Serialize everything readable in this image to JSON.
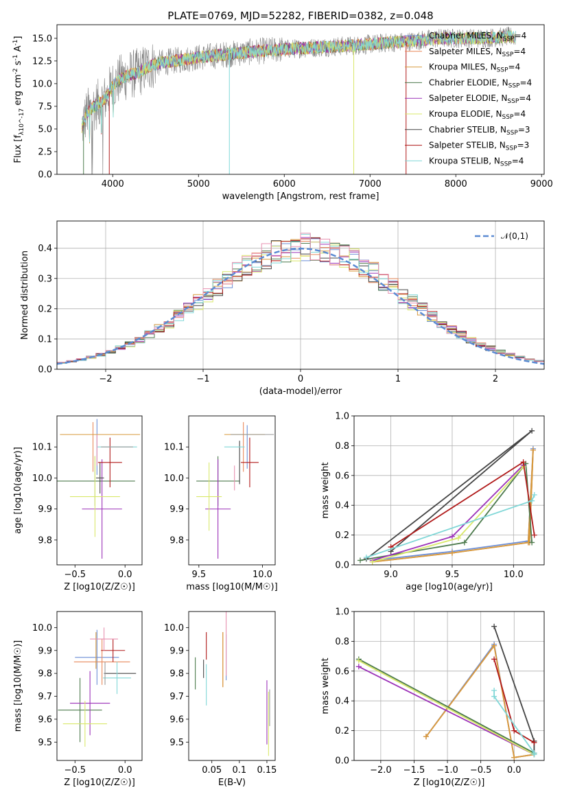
{
  "colors": [
    "#6b8ed6",
    "#e8885a",
    "#d79a3c",
    "#4c7a4c",
    "#9b30b8",
    "#d9e86a",
    "#444444",
    "#b01818",
    "#7fd7d7",
    "#e890b0",
    "#999999"
  ],
  "series_names": [
    "Chabrier MILES, N_SSP=4",
    "Salpeter MILES, N_SSP=4",
    "Kroupa MILES, N_SSP=4",
    "Chabrier ELODIE, N_SSP=4",
    "Salpeter ELODIE, N_SSP=4",
    "Kroupa ELODIE, N_SSP=4",
    "Chabrier STELIB, N_SSP=3",
    "Salpeter STELIB, N_SSP=3",
    "Kroupa STELIB, N_SSP=4"
  ],
  "chart_data": [
    {
      "id": "spectrum",
      "type": "line",
      "title": "PLATE=0769, MJD=52282, FIBERID=0382, z=0.048",
      "xlabel": "wavelength [Angstrom, rest frame]",
      "ylabel": "Flux [f_λ10^-17 erg cm^-2 s^-1 A^-1]",
      "xlim": [
        3350,
        9030
      ],
      "ylim": [
        0,
        16.5
      ],
      "xticks": [
        4000,
        5000,
        6000,
        7000,
        8000,
        9000
      ],
      "yticks": [
        0.0,
        2.5,
        5.0,
        7.5,
        10.0,
        12.5,
        15.0
      ],
      "legend": "right",
      "continuum": {
        "x": [
          3640,
          3700,
          3800,
          3900,
          4000,
          4100,
          4200,
          4300,
          4400,
          4500,
          4700,
          5000,
          5300,
          5600,
          6000,
          6400,
          6800,
          7200,
          7500,
          7800,
          8200,
          8700
        ],
        "y": [
          5.2,
          6.8,
          7.6,
          8.2,
          9.8,
          10.6,
          11.0,
          11.2,
          11.8,
          12.2,
          12.5,
          12.9,
          13.2,
          13.5,
          13.8,
          14.0,
          14.2,
          14.5,
          14.7,
          15.0,
          15.0,
          15.2
        ]
      }
    },
    {
      "id": "residuals",
      "type": "line",
      "xlabel": "(data-model)/error",
      "ylabel": "Normed distribution",
      "xlim": [
        -2.5,
        2.5
      ],
      "ylim": [
        0,
        0.49
      ],
      "xticks": [
        -2,
        -1,
        0,
        1,
        2
      ],
      "yticks": [
        0.0,
        0.1,
        0.2,
        0.3,
        0.4
      ],
      "grid": true,
      "legend_label": "N(0,1)",
      "bin_width": 0.1
    },
    {
      "id": "age_vs_Z",
      "type": "scatter",
      "xlabel": "Z [log10(Z/Z☉)]",
      "ylabel": "age  [log10(age/yr)]",
      "xlim": [
        -0.68,
        0.17
      ],
      "ylim": [
        9.72,
        10.2
      ],
      "xticks": [
        -0.5,
        0.0
      ],
      "yticks": [
        9.8,
        9.9,
        10.0,
        10.1
      ],
      "points": [
        {
          "x": -0.28,
          "xerr": 0.0,
          "y": 10.1,
          "yerr": 0.09
        },
        {
          "x": -0.32,
          "xerr": 0.0,
          "y": 10.1,
          "yerr": 0.08
        },
        {
          "x": -0.25,
          "xerr": 0.4,
          "y": 10.14,
          "yerr": 0.0
        },
        {
          "x": -0.3,
          "xerr": 0.4,
          "y": 9.99,
          "yerr": 0.08
        },
        {
          "x": -0.23,
          "xerr": 0.2,
          "y": 9.9,
          "yerr": 0.16
        },
        {
          "x": -0.3,
          "xerr": 0.25,
          "y": 9.94,
          "yerr": 0.13
        },
        {
          "x": -0.25,
          "xerr": 0.04,
          "y": 10.0,
          "yerr": 0.05
        },
        {
          "x": -0.15,
          "xerr": 0.12,
          "y": 10.05,
          "yerr": 0.08
        },
        {
          "x": -0.08,
          "xerr": 0.2,
          "y": 10.1,
          "yerr": 0.0
        },
        {
          "x": -0.28,
          "xerr": 0.0,
          "y": 10.09,
          "yerr": 0.05
        },
        {
          "x": -0.08,
          "xerr": 0.16,
          "y": 10.1,
          "yerr": 0.0
        }
      ]
    },
    {
      "id": "age_vs_mass",
      "type": "scatter",
      "xlabel": "mass [log10(M/M☉)]",
      "ylabel": "",
      "xlim": [
        9.42,
        10.1
      ],
      "ylim": [
        9.72,
        10.2
      ],
      "xticks": [
        9.5,
        10.0
      ],
      "yticks": [
        9.8,
        9.9,
        10.0,
        10.1
      ],
      "points": [
        {
          "x": 9.88,
          "xerr": 0.0,
          "y": 10.1,
          "yerr": 0.07
        },
        {
          "x": 9.85,
          "xerr": 0.0,
          "y": 10.1,
          "yerr": 0.08
        },
        {
          "x": 9.86,
          "xerr": 0.16,
          "y": 10.14,
          "yerr": 0.0
        },
        {
          "x": 9.65,
          "xerr": 0.17,
          "y": 9.99,
          "yerr": 0.08
        },
        {
          "x": 9.65,
          "xerr": 0.1,
          "y": 9.9,
          "yerr": 0.16
        },
        {
          "x": 9.58,
          "xerr": 0.1,
          "y": 9.94,
          "yerr": 0.11
        },
        {
          "x": 9.82,
          "xerr": 0.0,
          "y": 10.05,
          "yerr": 0.07
        },
        {
          "x": 9.9,
          "xerr": 0.07,
          "y": 10.05,
          "yerr": 0.08
        },
        {
          "x": 9.78,
          "xerr": 0.08,
          "y": 10.1,
          "yerr": 0.0
        },
        {
          "x": 9.78,
          "xerr": 0.0,
          "y": 10.0,
          "yerr": 0.04
        },
        {
          "x": 9.92,
          "xerr": 0.17,
          "y": 10.14,
          "yerr": 0.0
        }
      ]
    },
    {
      "id": "mw_vs_age",
      "type": "line",
      "xlabel": "age  [log10(age/yr)]",
      "ylabel": "mass weight",
      "xlim": [
        8.7,
        10.25
      ],
      "ylim": [
        0,
        1.0
      ],
      "xticks": [
        9.0,
        9.5,
        10.0
      ],
      "yticks": [
        0.0,
        0.2,
        0.4,
        0.6,
        0.8,
        1.0
      ],
      "grid": true,
      "series": [
        {
          "x": [
            8.85,
            9.5,
            10.12,
            10.16,
            10.13
          ],
          "y": [
            0.03,
            0.09,
            0.16,
            0.78,
            0.15
          ]
        },
        {
          "x": [
            8.85,
            9.5,
            10.12,
            10.16,
            10.13
          ],
          "y": [
            0.02,
            0.08,
            0.15,
            0.77,
            0.15
          ]
        },
        {
          "x": [
            8.85,
            9.5,
            10.12,
            10.16,
            10.13
          ],
          "y": [
            0.02,
            0.08,
            0.15,
            0.77,
            0.15
          ]
        },
        {
          "x": [
            8.75,
            9.6,
            10.1,
            10.15
          ],
          "y": [
            0.03,
            0.15,
            0.68,
            0.15
          ]
        },
        {
          "x": [
            8.85,
            9.5,
            10.08
          ],
          "y": [
            0.03,
            0.19,
            0.67
          ]
        },
        {
          "x": [
            8.85,
            9.55,
            10.08
          ],
          "y": [
            0.02,
            0.18,
            0.66
          ]
        },
        {
          "x": [
            8.8,
            10.15,
            9.0
          ],
          "y": [
            0.04,
            0.9,
            0.09
          ]
        },
        {
          "x": [
            9.0,
            10.08,
            10.17
          ],
          "y": [
            0.12,
            0.69,
            0.2
          ]
        },
        {
          "x": [
            8.8,
            10.15,
            10.17
          ],
          "y": [
            0.05,
            0.43,
            0.47
          ]
        }
      ]
    },
    {
      "id": "mass_vs_Z",
      "type": "scatter",
      "xlabel": "Z [log10(Z/Z☉)]",
      "ylabel": "mass [log10(M/M☉)]",
      "xlim": [
        -0.68,
        0.17
      ],
      "ylim": [
        9.42,
        10.07
      ],
      "xticks": [
        -0.5,
        0.0
      ],
      "yticks": [
        9.5,
        9.6,
        9.7,
        9.8,
        9.9,
        10.0
      ],
      "points": [
        {
          "x": -0.28,
          "xerr": 0.22,
          "y": 9.87,
          "yerr": 0.12
        },
        {
          "x": -0.23,
          "xerr": 0.28,
          "y": 9.85,
          "yerr": 0.1
        },
        {
          "x": -0.29,
          "xerr": 0.0,
          "y": 9.9,
          "yerr": 0.08
        },
        {
          "x": -0.45,
          "xerr": 0.22,
          "y": 9.64,
          "yerr": 0.14
        },
        {
          "x": -0.35,
          "xerr": 0.2,
          "y": 9.67,
          "yerr": 0.14
        },
        {
          "x": -0.4,
          "xerr": 0.22,
          "y": 9.58,
          "yerr": 0.1
        },
        {
          "x": -0.05,
          "xerr": 0.16,
          "y": 9.8,
          "yerr": 0.0
        },
        {
          "x": -0.12,
          "xerr": 0.12,
          "y": 9.9,
          "yerr": 0.05
        },
        {
          "x": -0.08,
          "xerr": 0.14,
          "y": 9.78,
          "yerr": 0.07
        },
        {
          "x": -0.21,
          "xerr": 0.14,
          "y": 9.95,
          "yerr": 0.05
        },
        {
          "x": -0.2,
          "xerr": 0.0,
          "y": 9.8,
          "yerr": 0.05
        }
      ]
    },
    {
      "id": "mass_vs_EBV",
      "type": "scatter",
      "xlabel": "E(B-V)",
      "ylabel": "",
      "xlim": [
        0.008,
        0.165
      ],
      "ylim": [
        9.42,
        10.07
      ],
      "xticks": [
        0.05,
        0.1,
        0.15
      ],
      "yticks": [
        9.5,
        9.6,
        9.7,
        9.8,
        9.9,
        10.0
      ],
      "points": [
        {
          "x": 0.076,
          "xerr": 0.0,
          "y": 9.87,
          "yerr": 0.1
        },
        {
          "x": 0.07,
          "xerr": 0.0,
          "y": 9.86,
          "yerr": 0.12
        },
        {
          "x": 0.07,
          "xerr": 0.0,
          "y": 9.86,
          "yerr": 0.12
        },
        {
          "x": 0.02,
          "xerr": 0.0,
          "y": 9.8,
          "yerr": 0.07
        },
        {
          "x": 0.15,
          "xerr": 0.0,
          "y": 9.63,
          "yerr": 0.14
        },
        {
          "x": 0.153,
          "xerr": 0.0,
          "y": 9.58,
          "yerr": 0.14
        },
        {
          "x": 0.035,
          "xerr": 0.0,
          "y": 9.82,
          "yerr": 0.04
        },
        {
          "x": 0.04,
          "xerr": 0.0,
          "y": 9.92,
          "yerr": 0.06
        },
        {
          "x": 0.04,
          "xerr": 0.0,
          "y": 9.75,
          "yerr": 0.09
        },
        {
          "x": 0.076,
          "xerr": 0.0,
          "y": 9.93,
          "yerr": 0.14
        },
        {
          "x": 0.155,
          "xerr": 0.0,
          "y": 9.65,
          "yerr": 0.08
        }
      ]
    },
    {
      "id": "mw_vs_Z",
      "type": "line",
      "xlabel": "Z [log10(Z/Z☉)]",
      "ylabel": "mass weight",
      "xlim": [
        -2.4,
        0.45
      ],
      "ylim": [
        0,
        1.0
      ],
      "xticks": [
        -2.0,
        -1.5,
        -1.0,
        -0.5,
        0.0
      ],
      "yticks": [
        0.0,
        0.2,
        0.4,
        0.6,
        0.8,
        1.0
      ],
      "grid": true,
      "series": [
        {
          "x": [
            -1.32,
            -0.3,
            0.0,
            0.3
          ],
          "y": [
            0.16,
            0.78,
            0.02,
            0.04
          ]
        },
        {
          "x": [
            -1.32,
            -0.3,
            0.0,
            0.3
          ],
          "y": [
            0.16,
            0.77,
            0.02,
            0.04
          ]
        },
        {
          "x": [
            -1.32,
            -0.3,
            0.0,
            0.3
          ],
          "y": [
            0.16,
            0.77,
            0.02,
            0.04
          ]
        },
        {
          "x": [
            -2.33,
            0.3
          ],
          "y": [
            0.68,
            0.05
          ]
        },
        {
          "x": [
            -2.33,
            0.3
          ],
          "y": [
            0.63,
            0.04
          ]
        },
        {
          "x": [
            -2.33,
            0.3
          ],
          "y": [
            0.67,
            0.04
          ]
        },
        {
          "x": [
            -0.3,
            0.3,
            0.3
          ],
          "y": [
            0.9,
            0.13,
            0.05
          ]
        },
        {
          "x": [
            -0.3,
            0.0,
            0.3
          ],
          "y": [
            0.68,
            0.2,
            0.12
          ]
        },
        {
          "x": [
            -0.3,
            -0.3,
            0.3,
            0.3
          ],
          "y": [
            0.47,
            0.43,
            0.05,
            0.04
          ]
        }
      ]
    }
  ]
}
